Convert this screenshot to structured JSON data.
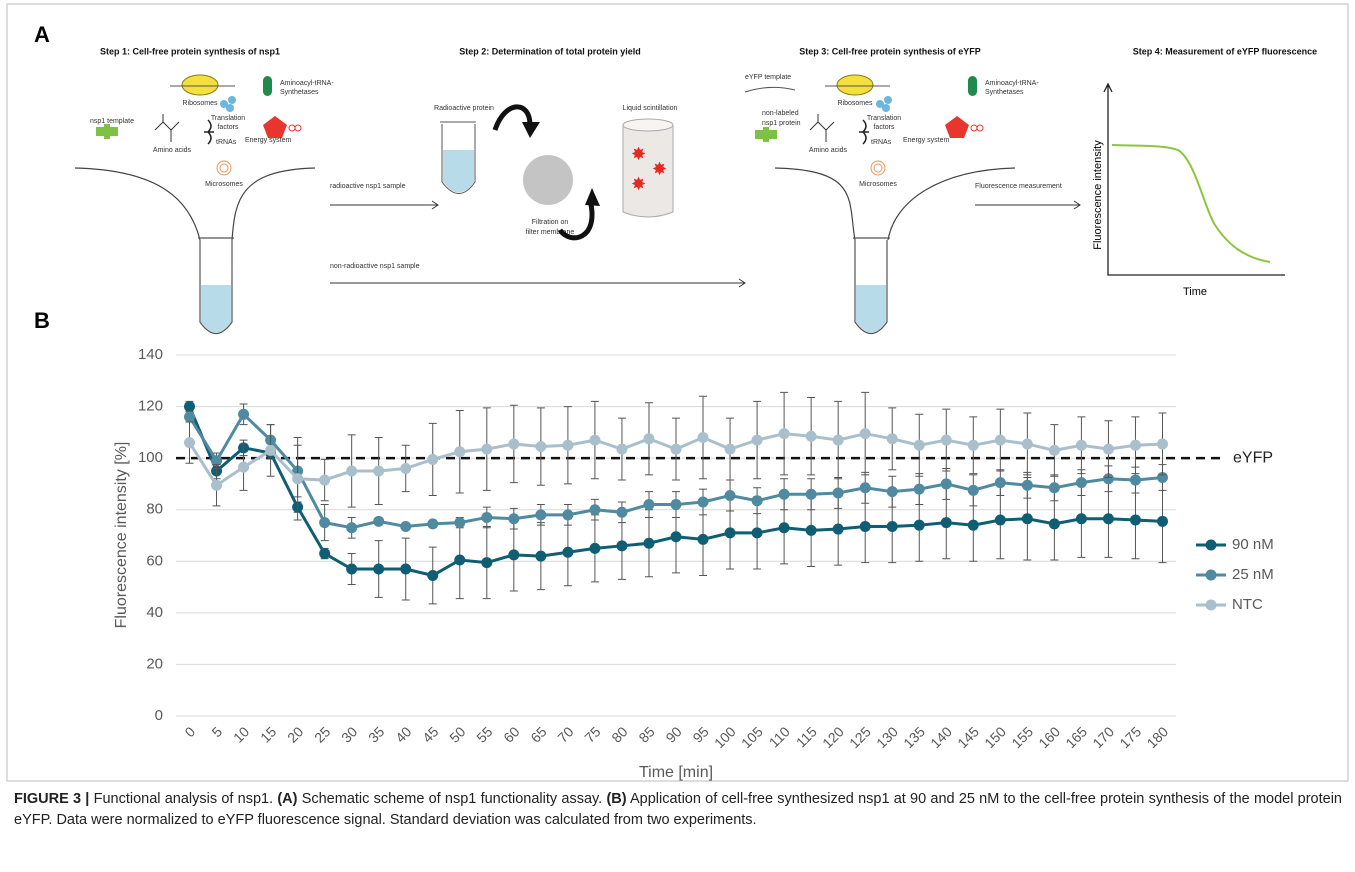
{
  "panel_a": {
    "label": "A",
    "step1": {
      "title": "Step 1: Cell-free protein synthesis of nsp1",
      "ribosomes": "Ribosomes",
      "synthetases": [
        "Aminoacyl-tRNA-",
        "Synthetases"
      ],
      "factors": [
        "Translation",
        "factors"
      ],
      "template": "nsp1 template",
      "amino_acids": "Amino acids",
      "trnas": "tRNAs",
      "energy": "Energy system",
      "microsomes": "Microsomes"
    },
    "arrow_radioactive": "radioactive nsp1 sample",
    "arrow_non_radioactive": "non-radioactive nsp1 sample",
    "step2": {
      "title": "Step 2: Determination of total protein yield",
      "protein": "Radioactive protein",
      "scintillation": "Liquid scintillation",
      "filtration": [
        "Filtration on",
        "filter membrane"
      ]
    },
    "step3": {
      "title": "Step 3: Cell-free protein synthesis of eYFP",
      "eyfp_template": "eYFP template",
      "ribosomes": "Ribosomes",
      "synthetases": [
        "Aminoacyl-tRNA-",
        "Synthetases"
      ],
      "factors": [
        "Translation",
        "factors"
      ],
      "nsp1_protein": [
        "non-labeled",
        "nsp1 protein"
      ],
      "amino_acids": "Amino acids",
      "trnas": "tRNAs",
      "energy": "Energy system",
      "microsomes": "Microsomes"
    },
    "arrow_fluorescence": "Fluorescence measurement",
    "step4": {
      "title": "Step 4: Measurement of eYFP fluorescence",
      "y_label": "Fluorescence intensity",
      "x_label": "Time"
    }
  },
  "chart_data": {
    "type": "line",
    "panel_label": "B",
    "x_label": "Time [min]",
    "y_label": "Fluorescence intensity [%]",
    "categories": [
      "0",
      "5",
      "10",
      "15",
      "20",
      "25",
      "30",
      "35",
      "40",
      "45",
      "50",
      "55",
      "60",
      "65",
      "70",
      "75",
      "80",
      "85",
      "90",
      "95",
      "100",
      "105",
      "110",
      "115",
      "120",
      "125",
      "130",
      "135",
      "140",
      "145",
      "150",
      "155",
      "160",
      "165",
      "170",
      "175",
      "180"
    ],
    "series": [
      {
        "name": "90 nM",
        "color": "#0f5e74",
        "values": [
          120,
          95,
          104,
          102,
          81,
          63,
          57,
          57,
          57,
          54.5,
          60.5,
          59.5,
          62.5,
          62,
          63.5,
          65,
          66,
          67,
          69.5,
          68.5,
          71,
          71,
          73,
          72,
          72.5,
          73.5,
          73.5,
          74,
          75,
          74,
          76,
          76.5,
          74.5,
          76.5,
          76.5,
          76,
          75.5
        ],
        "errors": [
          2,
          3,
          3,
          2,
          2,
          2,
          6,
          11,
          12,
          11,
          15,
          14,
          14,
          13,
          13,
          13,
          13,
          13,
          14,
          14,
          14,
          14,
          14,
          14,
          14,
          14,
          14,
          14,
          14,
          14,
          15,
          16,
          14,
          15,
          15,
          15,
          16
        ]
      },
      {
        "name": "25 nM",
        "color": "#4f8aa0",
        "values": [
          116,
          99,
          117,
          107,
          95,
          75,
          73,
          75.5,
          73.5,
          74.5,
          75,
          77,
          76.5,
          78,
          78,
          80,
          79,
          82,
          82,
          83,
          85.5,
          83.5,
          86,
          86,
          86.5,
          88.5,
          87,
          88,
          90,
          87.5,
          90.5,
          89.5,
          88.5,
          90.5,
          92,
          91.5,
          92.5
        ],
        "errors": [
          2,
          3,
          4,
          6,
          10,
          7,
          4,
          1,
          1,
          1,
          2,
          4,
          4,
          4,
          4,
          4,
          4,
          5,
          5,
          5,
          6,
          5,
          6,
          6,
          6,
          6,
          6,
          6,
          6,
          6,
          5,
          5,
          5,
          5,
          5,
          5,
          5
        ]
      },
      {
        "name": "NTC",
        "color": "#a9bfcc",
        "values": [
          106,
          89.5,
          96.5,
          103,
          92,
          91.5,
          95,
          95,
          96,
          99.5,
          102.5,
          103.5,
          105.5,
          104.5,
          105,
          107,
          103.5,
          107.5,
          103.5,
          108,
          103.5,
          107,
          109.5,
          108.5,
          107,
          109.5,
          107.5,
          105,
          107,
          105,
          107,
          105.5,
          103,
          105,
          103.5,
          105,
          105.5
        ],
        "errors": [
          8,
          8,
          9,
          10,
          16,
          8,
          14,
          13,
          9,
          14,
          16,
          16,
          15,
          15,
          15,
          15,
          12,
          14,
          12,
          16,
          12,
          15,
          16,
          15,
          15,
          16,
          12,
          12,
          12,
          11,
          12,
          12,
          10,
          11,
          11,
          11,
          12
        ]
      }
    ],
    "reference_line": {
      "value": 100,
      "label": "eYFP"
    },
    "ylim": [
      0,
      140
    ],
    "yticks": [
      0,
      20,
      40,
      60,
      80,
      100,
      120,
      140
    ],
    "grid": true,
    "legend": "right"
  },
  "caption": [
    {
      "text": "FIGURE 3 |",
      "bold": true
    },
    {
      "text": " Functional analysis of nsp1. ",
      "bold": false
    },
    {
      "text": "(A)",
      "bold": true
    },
    {
      "text": " Schematic scheme of nsp1 functionality assay. ",
      "bold": false
    },
    {
      "text": "(B)",
      "bold": true
    },
    {
      "text": " Application of cell-free synthesized nsp1 at 90 and 25 nM to the cell-free protein synthesis of the model protein eYFP. Data were normalized to eYFP fluorescence signal. Standard deviation was calculated from two experiments.",
      "bold": false
    }
  ]
}
